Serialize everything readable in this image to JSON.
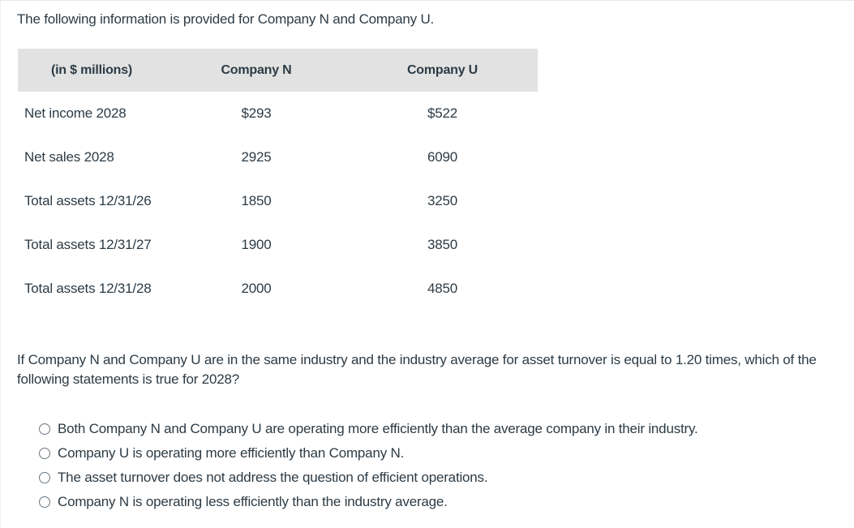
{
  "intro": "The following information is provided for Company N and Company U.",
  "table": {
    "headers": [
      "(in $ millions)",
      "Company N",
      "Company U"
    ],
    "rows": [
      {
        "label": "Net income 2028",
        "n": "$293",
        "u": "$522"
      },
      {
        "label": "Net sales 2028",
        "n": "2925",
        "u": "6090"
      },
      {
        "label": "Total assets 12/31/26",
        "n": "1850",
        "u": "3250"
      },
      {
        "label": "Total assets 12/31/27",
        "n": "1900",
        "u": "3850"
      },
      {
        "label": "Total assets 12/31/28",
        "n": "2000",
        "u": "4850"
      }
    ]
  },
  "question": "If Company N and Company U are in the same industry and the industry average for asset turnover is equal to 1.20 times, which of the following statements is true for 2028?",
  "options": [
    {
      "label": "Both Company N and Company U are operating more efficiently than the average company in their industry.",
      "selected": false
    },
    {
      "label": "Company U is operating more efficiently than Company N.",
      "selected": false
    },
    {
      "label": "The asset turnover does not address the question of efficient operations.",
      "selected": false
    },
    {
      "label": "Company N is operating less efficiently than the industry average.",
      "selected": false
    }
  ],
  "colors": {
    "text": "#2d3b45",
    "header_bg": "#e2e2e2",
    "radio_border": "#6b7780"
  }
}
